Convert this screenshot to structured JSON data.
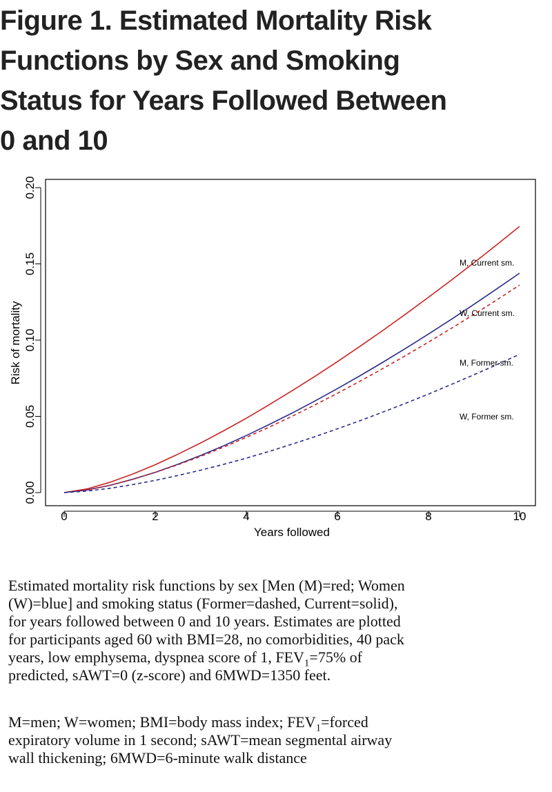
{
  "figure": {
    "title_lines": [
      "Figure 1. Estimated Mortality Risk",
      "Functions by Sex and Smoking",
      "Status for Years Followed Between",
      "0 and 10"
    ]
  },
  "chart_data": {
    "type": "line",
    "title": "",
    "xlabel": "Years followed",
    "ylabel": "Risk of mortality",
    "xlim": [
      0,
      10
    ],
    "ylim": [
      0,
      0.2
    ],
    "x_ticks": [
      0,
      2,
      4,
      6,
      8,
      10
    ],
    "x_tick_labels": [
      "0",
      "2",
      "4",
      "6",
      "8",
      "10"
    ],
    "y_ticks": [
      0,
      0.05,
      0.1,
      0.15,
      0.2
    ],
    "y_tick_labels": [
      "0.00",
      "0.05",
      "0.10",
      "0.15",
      "0.20"
    ],
    "grid": false,
    "x": [
      0,
      0.5,
      1,
      1.5,
      2,
      2.5,
      3,
      3.5,
      4,
      4.5,
      5,
      5.5,
      6,
      6.5,
      7,
      7.5,
      8,
      8.5,
      9,
      9.5,
      10
    ],
    "series": [
      {
        "name": "M, Current sm.",
        "color": "#cc2222",
        "dash": "solid",
        "values": [
          0,
          0.0024,
          0.0067,
          0.0121,
          0.0183,
          0.0252,
          0.0326,
          0.0405,
          0.0488,
          0.0576,
          0.0667,
          0.0761,
          0.0859,
          0.096,
          0.1064,
          0.1171,
          0.1281,
          0.1393,
          0.1508,
          0.1626,
          0.1746
        ]
      },
      {
        "name": "W, Current sm.",
        "color": "#2a2a8a",
        "dash": "solid",
        "values": [
          0,
          0.0017,
          0.0047,
          0.0087,
          0.0133,
          0.0186,
          0.0244,
          0.0307,
          0.0374,
          0.0446,
          0.0521,
          0.06,
          0.0682,
          0.0767,
          0.0855,
          0.0946,
          0.104,
          0.1136,
          0.1235,
          0.1336,
          0.1439
        ]
      },
      {
        "name": "M, Former sm.",
        "color": "#cc2222",
        "dash": "dashed",
        "values": [
          0,
          0.0017,
          0.0048,
          0.0087,
          0.0132,
          0.0183,
          0.0238,
          0.0298,
          0.0362,
          0.0429,
          0.05,
          0.0574,
          0.0651,
          0.0731,
          0.0814,
          0.0899,
          0.0987,
          0.1077,
          0.1169,
          0.1264,
          0.1361
        ]
      },
      {
        "name": "W, Former sm.",
        "color": "#2a2a8a",
        "dash": "dashed",
        "values": [
          0,
          0.001,
          0.0028,
          0.0052,
          0.008,
          0.0112,
          0.0147,
          0.0185,
          0.0226,
          0.027,
          0.0317,
          0.0366,
          0.0418,
          0.0472,
          0.0528,
          0.0586,
          0.0646,
          0.0709,
          0.0773,
          0.0839,
          0.0907
        ]
      }
    ],
    "annotations": [
      "M, Current sm.",
      "W, Current sm.",
      "M, Former sm.",
      "W, Former sm."
    ]
  },
  "caption": {
    "main_lines": [
      "Estimated mortality risk functions by sex [Men (M)=red; Women",
      "(W)=blue] and smoking status (Former=dashed, Current=solid),",
      "for years followed between 0 and 10 years.  Estimates are plotted",
      "for participants aged 60 with BMI=28, no comorbidities, 40 pack",
      "years, low emphysema, dyspnea score of 1, FEV",
      "1",
      "=75% of",
      "predicted, sAWT=0 (z-score) and 6MWD=1350 feet."
    ],
    "abbrev_lines": [
      "M=men; W=women; BMI=body mass index; FEV",
      "1",
      "=forced",
      "expiratory volume in 1 second; sAWT=mean segmental airway",
      "wall thickening; 6MWD=6-minute walk distance"
    ]
  }
}
